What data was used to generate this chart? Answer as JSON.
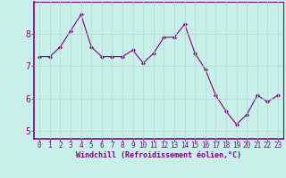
{
  "x": [
    0,
    1,
    2,
    3,
    4,
    5,
    6,
    7,
    8,
    9,
    10,
    11,
    12,
    13,
    14,
    15,
    16,
    17,
    18,
    19,
    20,
    21,
    22,
    23
  ],
  "y": [
    7.3,
    7.3,
    7.6,
    8.1,
    8.6,
    7.6,
    7.3,
    7.3,
    7.3,
    7.5,
    7.1,
    7.4,
    7.9,
    7.9,
    8.3,
    7.4,
    6.9,
    6.1,
    5.6,
    5.2,
    5.5,
    6.1,
    5.9,
    6.1
  ],
  "line_color": "#800080",
  "marker": "D",
  "marker_size": 2,
  "bg_color": "#c8f0e8",
  "grid_color": "#b0ddd0",
  "xlabel": "Windchill (Refroidissement éolien,°C)",
  "xlabel_color": "#800080",
  "tick_color": "#800080",
  "spine_color": "#800080",
  "ylim": [
    4.75,
    9.0
  ],
  "xlim": [
    -0.5,
    23.5
  ],
  "yticks": [
    5,
    6,
    7,
    8
  ],
  "xticks": [
    0,
    1,
    2,
    3,
    4,
    5,
    6,
    7,
    8,
    9,
    10,
    11,
    12,
    13,
    14,
    15,
    16,
    17,
    18,
    19,
    20,
    21,
    22,
    23
  ],
  "tick_fontsize": 5.5,
  "xlabel_fontsize": 6.0,
  "ylabel_fontsize": 7.0,
  "linewidth": 0.8
}
